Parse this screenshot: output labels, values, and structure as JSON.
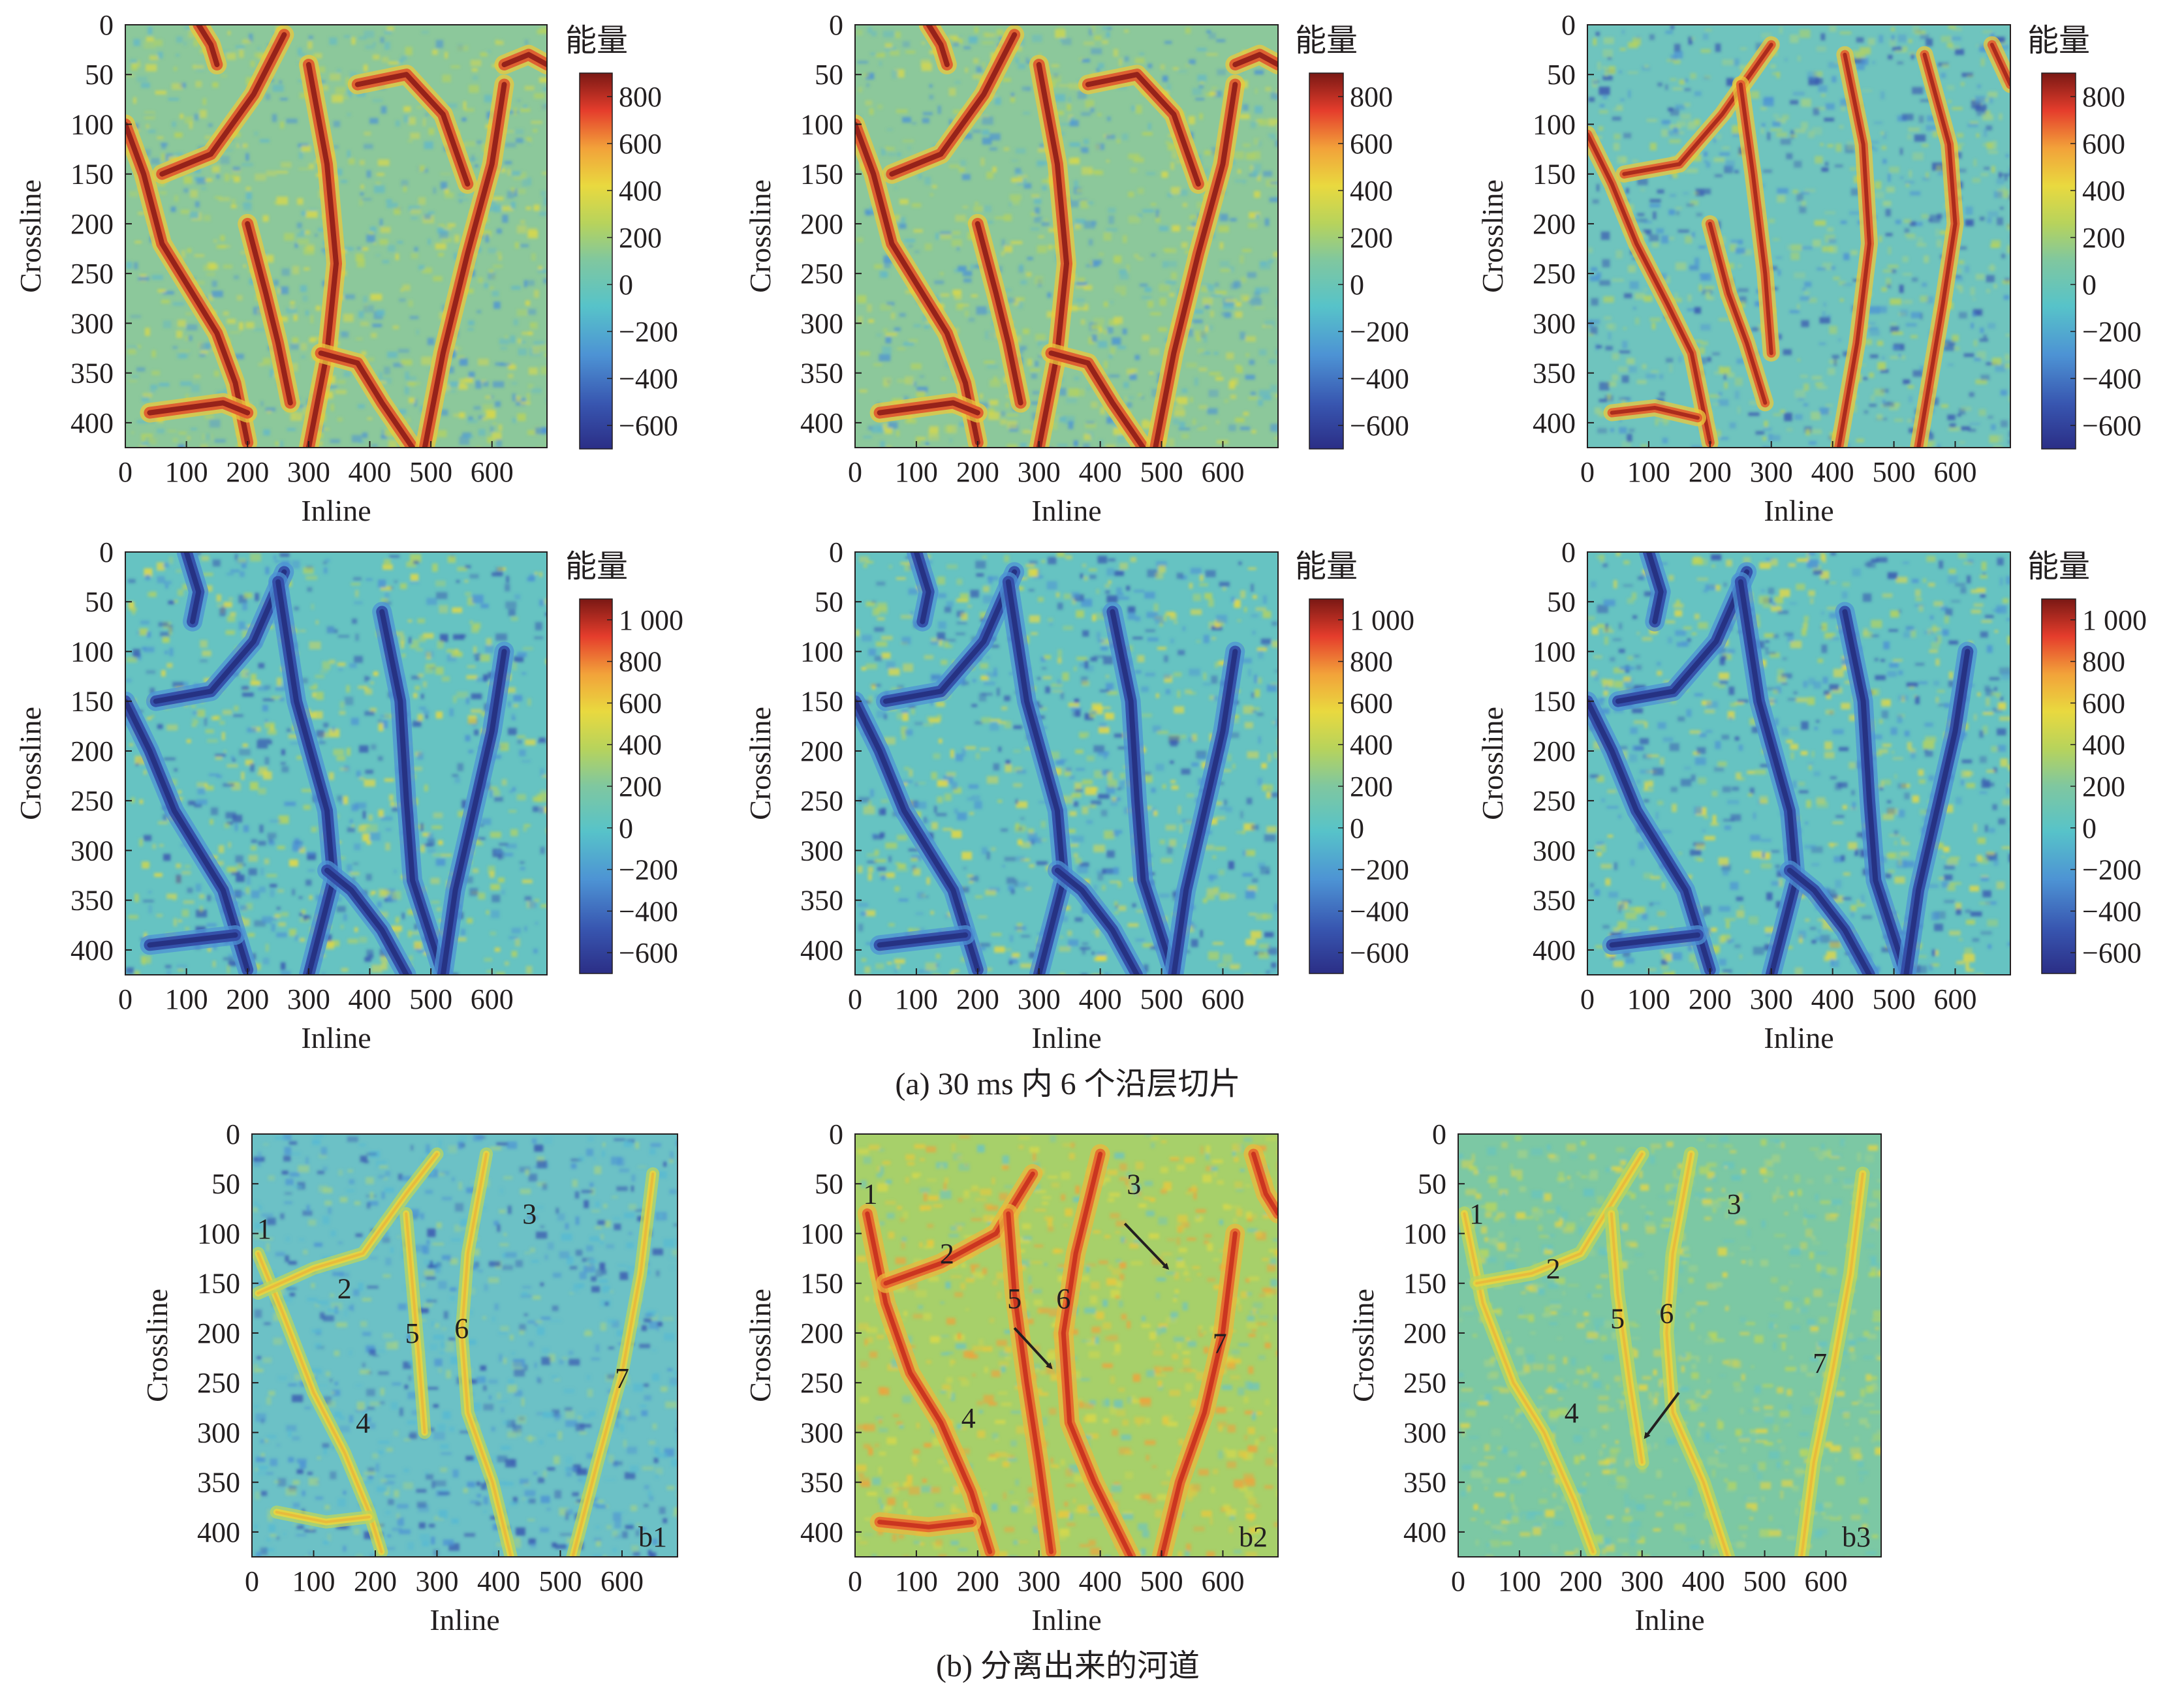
{
  "chart_data": [
    {
      "type": "heatmap",
      "xlabel": "Inline",
      "ylabel": "Crossline",
      "xticks": [
        "0",
        "100",
        "200",
        "300",
        "400",
        "500",
        "600"
      ],
      "yticks": [
        "0",
        "50",
        "100",
        "150",
        "200",
        "250",
        "300",
        "350",
        "400"
      ],
      "xlim": [
        0,
        690
      ],
      "ylim": [
        0,
        425
      ],
      "colorbar": {
        "title": "能量",
        "ticks": [
          "800",
          "600",
          "400",
          "200",
          "0",
          "−200",
          "−400",
          "−600"
        ],
        "range": [
          -700,
          900
        ]
      },
      "style": "warm"
    },
    {
      "type": "heatmap",
      "xlabel": "Inline",
      "ylabel": "Crossline",
      "xticks": [
        "0",
        "100",
        "200",
        "300",
        "400",
        "500",
        "600"
      ],
      "yticks": [
        "0",
        "50",
        "100",
        "150",
        "200",
        "250",
        "300",
        "350",
        "400"
      ],
      "xlim": [
        0,
        690
      ],
      "ylim": [
        0,
        425
      ],
      "colorbar": {
        "title": "能量",
        "ticks": [
          "800",
          "600",
          "400",
          "200",
          "0",
          "−200",
          "−400",
          "−600"
        ],
        "range": [
          -700,
          900
        ]
      },
      "style": "warm"
    },
    {
      "type": "heatmap",
      "xlabel": "Inline",
      "ylabel": "Crossline",
      "xticks": [
        "0",
        "100",
        "200",
        "300",
        "400",
        "500",
        "600"
      ],
      "yticks": [
        "0",
        "50",
        "100",
        "150",
        "200",
        "250",
        "300",
        "350",
        "400"
      ],
      "xlim": [
        0,
        690
      ],
      "ylim": [
        0,
        425
      ],
      "colorbar": {
        "title": "能量",
        "ticks": [
          "800",
          "600",
          "400",
          "200",
          "0",
          "−200",
          "−400",
          "−600"
        ],
        "range": [
          -700,
          900
        ]
      },
      "style": "mixed"
    },
    {
      "type": "heatmap",
      "xlabel": "Inline",
      "ylabel": "Crossline",
      "xticks": [
        "0",
        "100",
        "200",
        "300",
        "400",
        "500",
        "600"
      ],
      "yticks": [
        "0",
        "50",
        "100",
        "150",
        "200",
        "250",
        "300",
        "350",
        "400"
      ],
      "xlim": [
        0,
        690
      ],
      "ylim": [
        0,
        425
      ],
      "colorbar": {
        "title": "能量",
        "ticks": [
          "1 000",
          "800",
          "600",
          "400",
          "200",
          "0",
          "−200",
          "−400",
          "−600"
        ],
        "range": [
          -700,
          1100
        ]
      },
      "style": "cool"
    },
    {
      "type": "heatmap",
      "xlabel": "Inline",
      "ylabel": "Crossline",
      "xticks": [
        "0",
        "100",
        "200",
        "300",
        "400",
        "500",
        "600"
      ],
      "yticks": [
        "0",
        "50",
        "100",
        "150",
        "200",
        "250",
        "300",
        "350",
        "400"
      ],
      "xlim": [
        0,
        690
      ],
      "ylim": [
        0,
        425
      ],
      "colorbar": {
        "title": "能量",
        "ticks": [
          "1 000",
          "800",
          "600",
          "400",
          "200",
          "0",
          "−200",
          "−400",
          "−600"
        ],
        "range": [
          -700,
          1100
        ]
      },
      "style": "cool"
    },
    {
      "type": "heatmap",
      "xlabel": "Inline",
      "ylabel": "Crossline",
      "xticks": [
        "0",
        "100",
        "200",
        "300",
        "400",
        "500",
        "600"
      ],
      "yticks": [
        "0",
        "50",
        "100",
        "150",
        "200",
        "250",
        "300",
        "350",
        "400"
      ],
      "xlim": [
        0,
        690
      ],
      "ylim": [
        0,
        425
      ],
      "colorbar": {
        "title": "能量",
        "ticks": [
          "1 000",
          "800",
          "600",
          "400",
          "200",
          "0",
          "−200",
          "−400",
          "−600"
        ],
        "range": [
          -700,
          1100
        ]
      },
      "style": "cool"
    },
    {
      "type": "heatmap",
      "xlabel": "Inline",
      "ylabel": "Crossline",
      "xticks": [
        "0",
        "100",
        "200",
        "300",
        "400",
        "500",
        "600"
      ],
      "yticks": [
        "0",
        "50",
        "100",
        "150",
        "200",
        "250",
        "300",
        "350",
        "400"
      ],
      "xlim": [
        0,
        690
      ],
      "ylim": [
        0,
        425
      ],
      "panel_label": "b1",
      "style": "b1",
      "annotations": [
        {
          "text": "1",
          "x": 20,
          "y": 105
        },
        {
          "text": "2",
          "x": 150,
          "y": 165
        },
        {
          "text": "3",
          "x": 450,
          "y": 90
        },
        {
          "text": "4",
          "x": 180,
          "y": 300
        },
        {
          "text": "5",
          "x": 260,
          "y": 210
        },
        {
          "text": "6",
          "x": 340,
          "y": 205
        },
        {
          "text": "7",
          "x": 600,
          "y": 255
        }
      ]
    },
    {
      "type": "heatmap",
      "xlabel": "Inline",
      "ylabel": "Crossline",
      "xticks": [
        "0",
        "100",
        "200",
        "300",
        "400",
        "500",
        "600"
      ],
      "yticks": [
        "0",
        "50",
        "100",
        "150",
        "200",
        "250",
        "300",
        "350",
        "400"
      ],
      "xlim": [
        0,
        690
      ],
      "ylim": [
        0,
        425
      ],
      "panel_label": "b2",
      "style": "b2",
      "annotations": [
        {
          "text": "1",
          "x": 25,
          "y": 70
        },
        {
          "text": "2",
          "x": 150,
          "y": 130
        },
        {
          "text": "3",
          "x": 455,
          "y": 60
        },
        {
          "text": "4",
          "x": 185,
          "y": 295
        },
        {
          "text": "5",
          "x": 260,
          "y": 175
        },
        {
          "text": "6",
          "x": 340,
          "y": 175
        },
        {
          "text": "7",
          "x": 595,
          "y": 220
        }
      ]
    },
    {
      "type": "heatmap",
      "xlabel": "Inline",
      "ylabel": "Crossline",
      "xticks": [
        "0",
        "100",
        "200",
        "300",
        "400",
        "500",
        "600"
      ],
      "yticks": [
        "0",
        "50",
        "100",
        "150",
        "200",
        "250",
        "300",
        "350",
        "400"
      ],
      "xlim": [
        0,
        690
      ],
      "ylim": [
        0,
        425
      ],
      "panel_label": "b3",
      "style": "b3",
      "annotations": [
        {
          "text": "1",
          "x": 30,
          "y": 90
        },
        {
          "text": "2",
          "x": 155,
          "y": 145
        },
        {
          "text": "3",
          "x": 450,
          "y": 80
        },
        {
          "text": "4",
          "x": 185,
          "y": 290
        },
        {
          "text": "5",
          "x": 260,
          "y": 195
        },
        {
          "text": "6",
          "x": 340,
          "y": 190
        },
        {
          "text": "7",
          "x": 590,
          "y": 240
        }
      ]
    }
  ],
  "captions": {
    "a": "(a) 30 ms 内 6 个沿层切片",
    "b": "(b) 分离出来的河道"
  }
}
